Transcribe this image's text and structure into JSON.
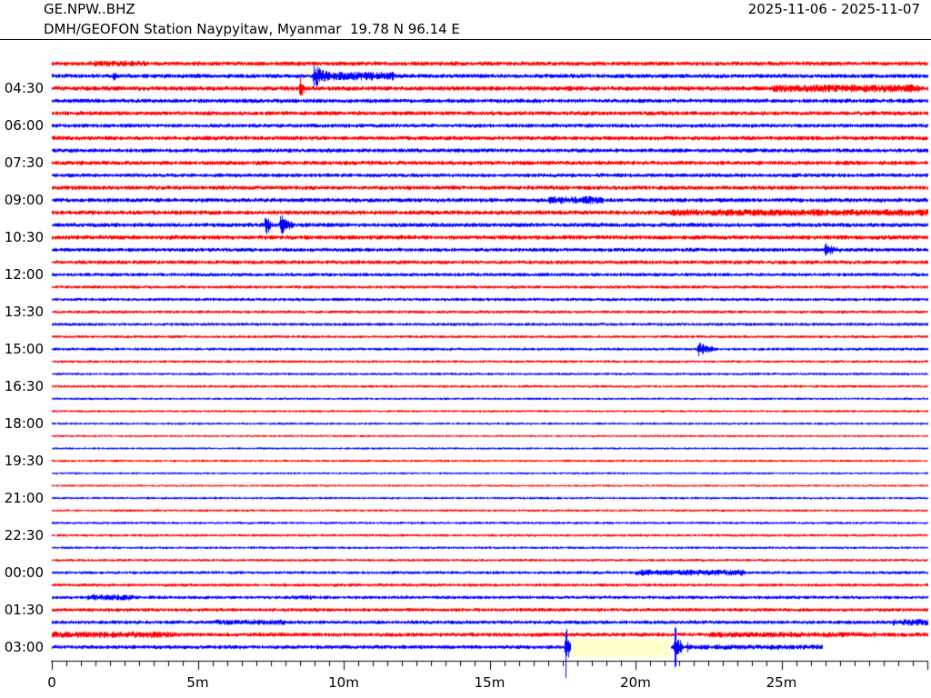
{
  "chart_data": {
    "type": "line",
    "subtype": "helicorder-dayplot",
    "title": "GE.NPW..BHZ",
    "subtitle": "DMH/GEOFON Station Naypyitaw, Myanmar  19.78 N 96.14 E",
    "date_range": "2025-11-06 - 2025-11-07",
    "minutes_per_row": 30,
    "colors": {
      "even_row": "#ff0000",
      "odd_row": "#0000ff",
      "gap": "#ffffcc",
      "axis": "#000000",
      "text": "#000000"
    },
    "x_ticks": {
      "labels": [
        "0",
        "5m",
        "10m",
        "15m",
        "20m",
        "25m"
      ],
      "minutes": [
        0,
        5,
        10,
        15,
        20,
        25
      ],
      "minor_step_min": 0.5,
      "axis_max_min": 30
    },
    "y_ticks": {
      "labels": [
        "04:30",
        "06:00",
        "07:30",
        "09:00",
        "10:30",
        "12:00",
        "13:30",
        "15:00",
        "16:30",
        "18:00",
        "19:30",
        "21:00",
        "22:30",
        "00:00",
        "01:30",
        "03:00"
      ],
      "first_row": 2,
      "row_step": 3
    },
    "rows": [
      {
        "t": "03:30",
        "a": 2.4,
        "ns": [
          [
            1.3,
            3.2,
            1.4
          ]
        ]
      },
      {
        "t": "04:00",
        "a": 2.4,
        "ev": [
          [
            2.12,
            8,
            0.07
          ],
          [
            8.97,
            15,
            0.45
          ]
        ],
        "ns": [
          [
            9.0,
            11.7,
            2.0
          ]
        ]
      },
      {
        "t": "04:30",
        "a": 2.6,
        "ev": [
          [
            8.5,
            15,
            0.14
          ],
          [
            17.72,
            5,
            0.04
          ]
        ],
        "ns": [
          [
            24.6,
            29.7,
            1.7
          ]
        ]
      },
      {
        "t": "05:00",
        "a": 2.4
      },
      {
        "t": "05:30",
        "a": 2.4
      },
      {
        "t": "06:00",
        "a": 2.2
      },
      {
        "t": "06:30",
        "a": 2.4
      },
      {
        "t": "07:00",
        "a": 2.3
      },
      {
        "t": "07:30",
        "a": 2.4,
        "ev": [
          [
            10.0,
            3.8,
            0.22
          ]
        ]
      },
      {
        "t": "08:00",
        "a": 2.2
      },
      {
        "t": "08:30",
        "a": 2.4
      },
      {
        "t": "09:00",
        "a": 2.4,
        "ns": [
          [
            17.0,
            18.9,
            1.8
          ]
        ]
      },
      {
        "t": "09:30",
        "a": 2.5,
        "ns": [
          [
            21.2,
            30,
            1.55
          ]
        ]
      },
      {
        "t": "10:00",
        "a": 2.4,
        "ev": [
          [
            7.32,
            15,
            0.16
          ],
          [
            7.83,
            15,
            0.28
          ]
        ]
      },
      {
        "t": "10:30",
        "a": 2.5
      },
      {
        "t": "11:00",
        "a": 2.2,
        "ev": [
          [
            26.5,
            9,
            0.4
          ]
        ]
      },
      {
        "t": "11:30",
        "a": 2.2
      },
      {
        "t": "12:00",
        "a": 2.0
      },
      {
        "t": "12:30",
        "a": 1.8
      },
      {
        "t": "13:00",
        "a": 1.8
      },
      {
        "t": "13:30",
        "a": 1.7
      },
      {
        "t": "14:00",
        "a": 1.7
      },
      {
        "t": "14:30",
        "a": 1.6
      },
      {
        "t": "15:00",
        "a": 1.6,
        "ev": [
          [
            22.15,
            8,
            0.5
          ]
        ]
      },
      {
        "t": "15:30",
        "a": 1.5
      },
      {
        "t": "16:00",
        "a": 1.4
      },
      {
        "t": "16:30",
        "a": 1.5
      },
      {
        "t": "17:00",
        "a": 1.3
      },
      {
        "t": "17:30",
        "a": 1.3
      },
      {
        "t": "18:00",
        "a": 1.3
      },
      {
        "t": "18:30",
        "a": 1.2
      },
      {
        "t": "19:00",
        "a": 1.2
      },
      {
        "t": "19:30",
        "a": 1.3
      },
      {
        "t": "20:00",
        "a": 1.2
      },
      {
        "t": "20:30",
        "a": 1.2
      },
      {
        "t": "21:00",
        "a": 1.3
      },
      {
        "t": "21:30",
        "a": 1.3
      },
      {
        "t": "22:00",
        "a": 1.4
      },
      {
        "t": "22:30",
        "a": 1.5
      },
      {
        "t": "23:00",
        "a": 1.4
      },
      {
        "t": "23:30",
        "a": 1.5
      },
      {
        "t": "00:00",
        "a": 1.7,
        "ns": [
          [
            20.0,
            23.8,
            2.0
          ]
        ]
      },
      {
        "t": "00:30",
        "a": 1.8
      },
      {
        "t": "01:00",
        "a": 1.9,
        "ns": [
          [
            1.2,
            2.8,
            1.8
          ],
          [
            8.2,
            8.9,
            1.5
          ]
        ]
      },
      {
        "t": "01:30",
        "a": 2.0
      },
      {
        "t": "02:00",
        "a": 2.1,
        "ns": [
          [
            5.6,
            8.0,
            1.5
          ],
          [
            28.8,
            30,
            1.8
          ]
        ]
      },
      {
        "t": "02:30",
        "a": 2.3,
        "ns": [
          [
            0,
            4.2,
            1.6
          ],
          [
            22.4,
            28.2,
            1.4
          ]
        ]
      },
      {
        "t": "03:00",
        "a": 2.2,
        "ev": [
          [
            17.6,
            38,
            0.08
          ],
          [
            21.34,
            28,
            0.11
          ],
          [
            21.52,
            12,
            0.06
          ],
          [
            21.78,
            6,
            0.2
          ]
        ],
        "ns": [
          [
            22.2,
            26.4,
            1.3
          ]
        ],
        "gaps": [
          [
            17.78,
            21.2
          ]
        ],
        "end": 26.4
      }
    ]
  }
}
